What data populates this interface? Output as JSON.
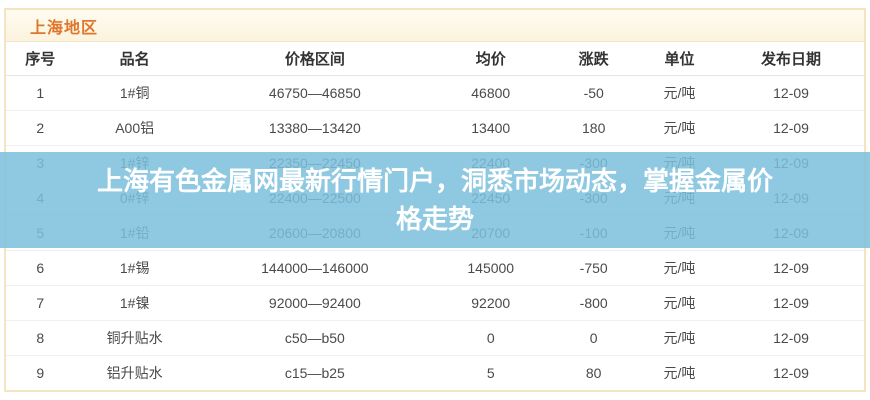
{
  "panel": {
    "region_title": "上海地区",
    "accent_color": "#e0762c",
    "border_color": "#f3e5c2"
  },
  "table": {
    "columns": [
      "序号",
      "品名",
      "价格区间",
      "均价",
      "涨跌",
      "单位",
      "发布日期"
    ],
    "column_widths_pct": [
      8,
      14,
      28,
      13,
      11,
      9,
      17
    ],
    "rows": [
      {
        "no": "1",
        "name": "1#铜",
        "range": "46750—46850",
        "avg": "46800",
        "change": "-50",
        "trend": "down",
        "unit": "元/吨",
        "date": "12-09"
      },
      {
        "no": "2",
        "name": "A00铝",
        "range": "13380—13420",
        "avg": "13400",
        "change": "180",
        "trend": "up",
        "unit": "元/吨",
        "date": "12-09"
      },
      {
        "no": "3",
        "name": "1#锌",
        "range": "22350—22450",
        "avg": "22400",
        "change": "-300",
        "trend": "down",
        "unit": "元/吨",
        "date": "12-09"
      },
      {
        "no": "4",
        "name": "0#锌",
        "range": "22400—22500",
        "avg": "22450",
        "change": "-300",
        "trend": "down",
        "unit": "元/吨",
        "date": "12-09"
      },
      {
        "no": "5",
        "name": "1#铅",
        "range": "20600—20800",
        "avg": "20700",
        "change": "-100",
        "trend": "down",
        "unit": "元/吨",
        "date": "12-09"
      },
      {
        "no": "6",
        "name": "1#锡",
        "range": "144000—146000",
        "avg": "145000",
        "change": "-750",
        "trend": "down",
        "unit": "元/吨",
        "date": "12-09"
      },
      {
        "no": "7",
        "name": "1#镍",
        "range": "92000—92400",
        "avg": "92200",
        "change": "-800",
        "trend": "down",
        "unit": "元/吨",
        "date": "12-09"
      },
      {
        "no": "8",
        "name": "铜升贴水",
        "range": "c50—b50",
        "avg": "0",
        "change": "0",
        "trend": "down",
        "unit": "元/吨",
        "date": "12-09"
      },
      {
        "no": "9",
        "name": "铝升贴水",
        "range": "c15—b25",
        "avg": "5",
        "change": "80",
        "trend": "up",
        "unit": "元/吨",
        "date": "12-09"
      }
    ]
  },
  "overlay": {
    "full_text": "上海有色金属网最新行情门户，洞悉市场动态，掌握金属价格走势",
    "lines": [
      "上海有色金属网最新行情门户，洞悉市场动态，掌握金属价",
      "格走势"
    ],
    "background_rgba": "rgba(123, 191, 220, 0.85)",
    "text_color": "#ffffff"
  },
  "colors": {
    "change_up": "#e0707a",
    "change_down": "#55a25f"
  }
}
